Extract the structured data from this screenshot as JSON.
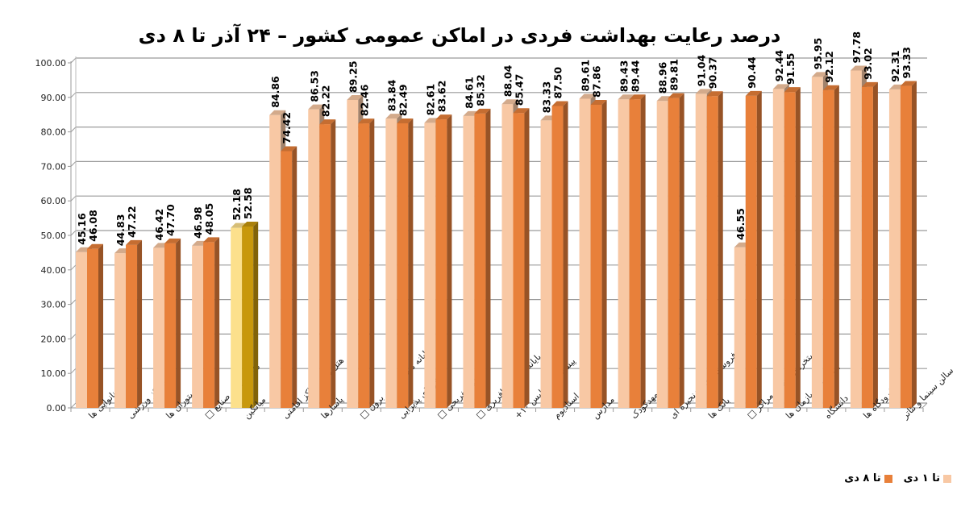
{
  "chart_data": {
    "type": "bar",
    "title": "درصد رعایت بهداشت فردی در اماکن عمومی کشور  – ۲۴ آذر تا  ۸ دی",
    "xlabel": "",
    "ylabel": "",
    "ylim": [
      0,
      100
    ],
    "yticks": [
      "0.00",
      "10.00",
      "20.00",
      "30.00",
      "40.00",
      "50.00",
      "60.00",
      "70.00",
      "80.00",
      "90.00",
      "100.00"
    ],
    "grid": true,
    "legend_position": "bottom-right",
    "categories": [
      "نانوایی ها",
      "مراکز ورزشی",
      "رستوران ها",
      "کارگاه ها و صنایع □",
      "میانگین",
      "هتل ها و مراکز اقامتی",
      "پاسارها",
      "پایانه مسافر بری برون □",
      "تالارهای پذیرایی",
      "مراکز تفریحی □",
      "پایانه های مسافربری □",
      "پیشخوان و پلیس ۱۰+",
      "استادیوم",
      "مدارس",
      "مهدکودک",
      "فروشگاه های زنجیره ای",
      "بانک ها",
      "استخرهای شنا و مراکز □",
      "ادارات و سازمان ها",
      "دانشگاه",
      "فرودگاه ها",
      "سالن سینما و تئاتر"
    ],
    "series": [
      {
        "name": "تا ۱ دی",
        "color": "#F8C8A4",
        "highlight_color": "#FCE08C",
        "values": [
          45.16,
          44.83,
          46.42,
          46.98,
          52.18,
          84.86,
          86.53,
          89.25,
          83.84,
          82.61,
          84.61,
          88.04,
          83.33,
          89.61,
          89.43,
          88.96,
          91.04,
          46.55,
          92.44,
          95.95,
          97.78,
          92.31
        ],
        "labels": [
          "45.16",
          "44.83",
          "46.42",
          "46.98",
          "52.18",
          "84.86",
          "86.53",
          "89.25",
          "83.84",
          "82.61",
          "84.61",
          "88.04",
          "83.33",
          "89.61",
          "89.43",
          "88.96",
          "91.04",
          "46.55",
          "92.44",
          "95.95",
          "97.78",
          "92.31"
        ]
      },
      {
        "name": "تا ۸ دی",
        "color": "#E8803A",
        "highlight_color": "#C8980C",
        "values": [
          46.08,
          47.22,
          47.7,
          48.05,
          52.58,
          74.42,
          82.22,
          82.46,
          82.49,
          83.62,
          85.32,
          85.47,
          87.5,
          87.86,
          89.44,
          89.81,
          90.37,
          90.44,
          91.55,
          92.12,
          93.02,
          93.33
        ],
        "labels": [
          "46.08",
          "47.22",
          "47.70",
          "48.05",
          "52.58",
          "74.42",
          "82.22",
          "82.46",
          "82.49",
          "83.62",
          "85.32",
          "85.47",
          "87.50",
          "87.86",
          "89.44",
          "89.81",
          "90.37",
          "90.44",
          "91.55",
          "92.12",
          "93.02",
          "93.33"
        ]
      }
    ],
    "highlighted_category_index": 4
  },
  "legend": {
    "items": [
      {
        "label": "تا ۸ دی",
        "color": "#E8803A"
      },
      {
        "label": "تا ۱ دی",
        "color": "#F8C8A4"
      }
    ]
  }
}
